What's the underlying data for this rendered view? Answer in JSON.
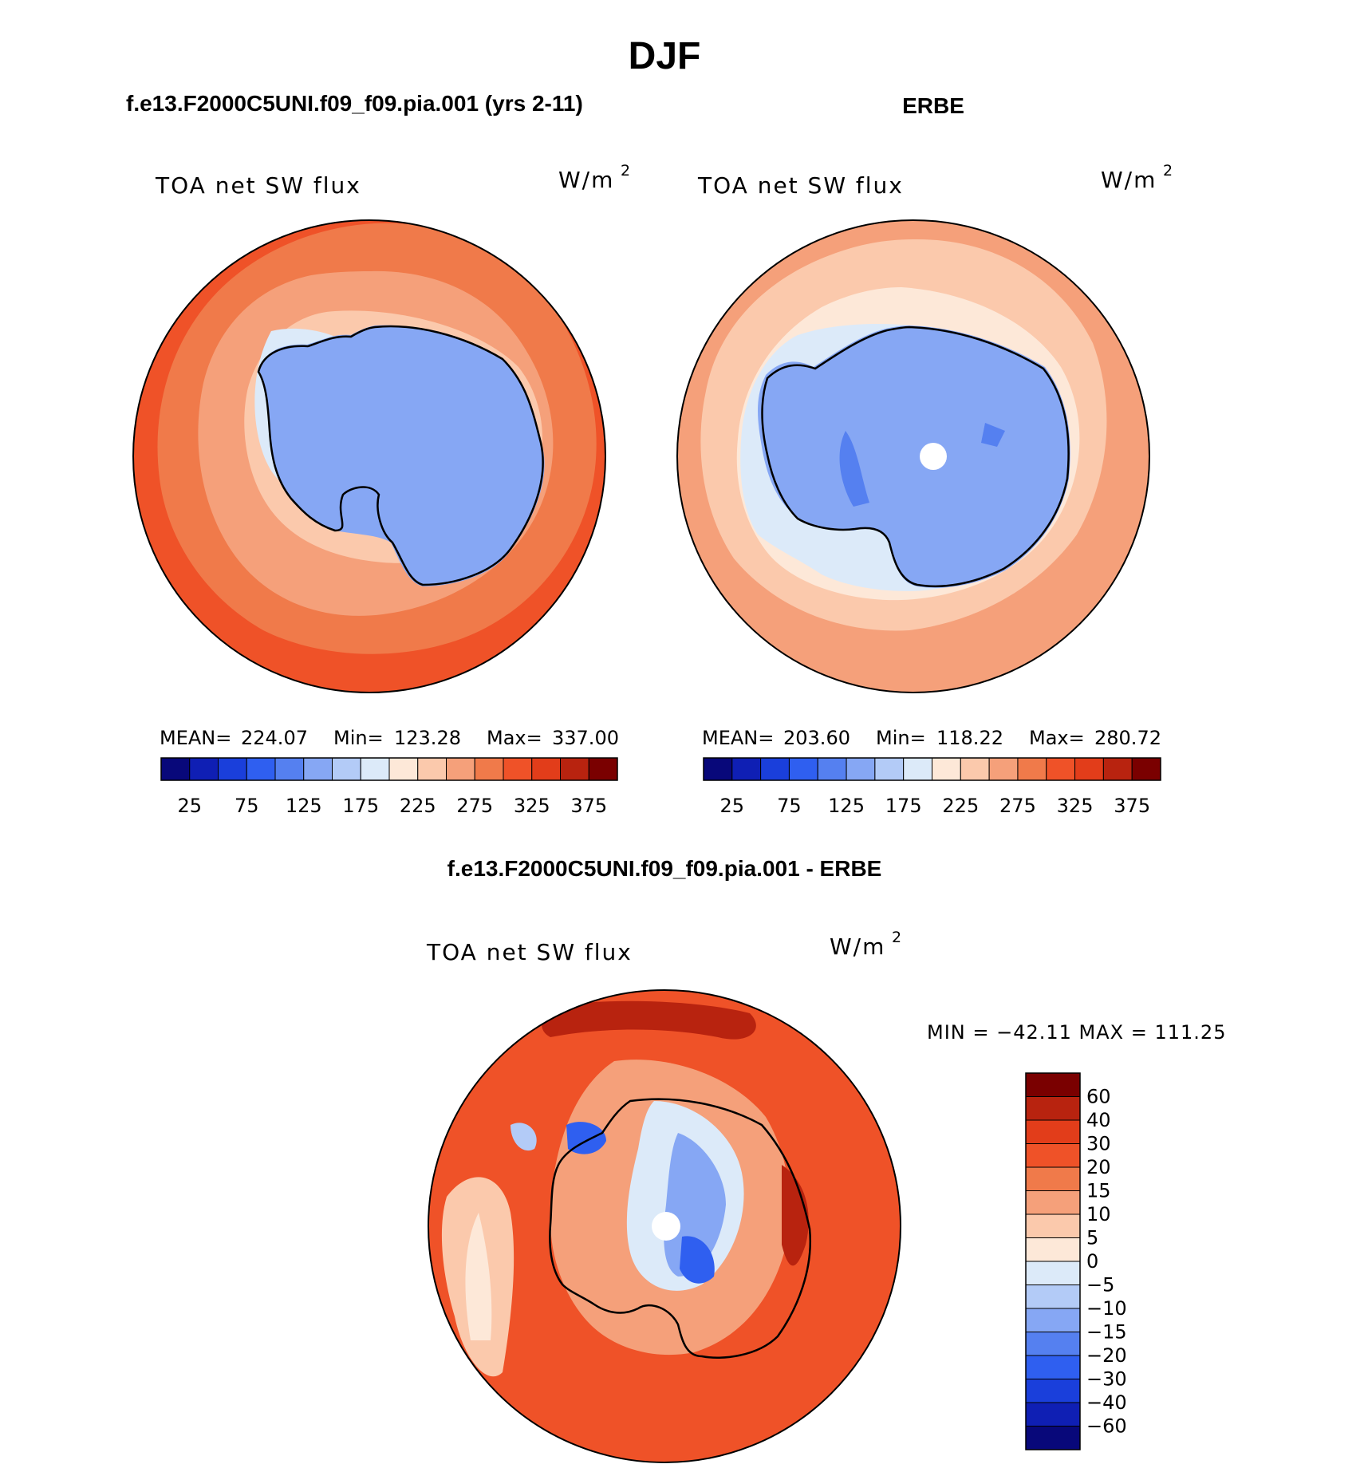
{
  "title": "DJF",
  "chart_data": [
    {
      "type": "contour-map",
      "projection": "south-polar-stereographic",
      "title": "f.e13.F2000C5UNI.f09_f09.pia.001 (yrs 2-11)",
      "variable": "TOA net SW flux",
      "units_base": "W/m",
      "units_exp": "2",
      "stats": {
        "mean_label": "MEAN=",
        "mean": "224.07",
        "min_label": "Min=",
        "min": "123.28",
        "max_label": "Max=",
        "max": "337.00"
      },
      "levels": [
        25,
        50,
        75,
        100,
        125,
        150,
        175,
        200,
        225,
        250,
        275,
        300,
        325,
        350,
        375
      ],
      "tick_labels": [
        "25",
        "75",
        "125",
        "175",
        "225",
        "275",
        "325",
        "375"
      ],
      "colors": [
        "#08087a",
        "#0f1fb4",
        "#1a3fdb",
        "#2f5ff0",
        "#5580f0",
        "#86a7f4",
        "#b3cbf7",
        "#dceaf9",
        "#fde8d8",
        "#fbc9ac",
        "#f5a07a",
        "#f07a4a",
        "#ef5228",
        "#e23d1a",
        "#b8230f",
        "#7a0000"
      ]
    },
    {
      "type": "contour-map",
      "projection": "south-polar-stereographic",
      "title": "ERBE",
      "variable": "TOA net SW flux",
      "units_base": "W/m",
      "units_exp": "2",
      "stats": {
        "mean_label": "MEAN=",
        "mean": "203.60",
        "min_label": "Min=",
        "min": "118.22",
        "max_label": "Max=",
        "max": "280.72"
      },
      "levels": [
        25,
        50,
        75,
        100,
        125,
        150,
        175,
        200,
        225,
        250,
        275,
        300,
        325,
        350,
        375
      ],
      "tick_labels": [
        "25",
        "75",
        "125",
        "175",
        "225",
        "275",
        "325",
        "375"
      ],
      "colors": [
        "#08087a",
        "#0f1fb4",
        "#1a3fdb",
        "#2f5ff0",
        "#5580f0",
        "#86a7f4",
        "#b3cbf7",
        "#dceaf9",
        "#fde8d8",
        "#fbc9ac",
        "#f5a07a",
        "#f07a4a",
        "#ef5228",
        "#e23d1a",
        "#b8230f",
        "#7a0000"
      ]
    },
    {
      "type": "contour-map",
      "projection": "south-polar-stereographic",
      "title": "f.e13.F2000C5UNI.f09_f09.pia.001 - ERBE",
      "variable": "TOA net SW flux",
      "units_base": "W/m",
      "units_exp": "2",
      "stats": {
        "text": "MIN = −42.11  MAX = 111.25",
        "min": -42.11,
        "max": 111.25
      },
      "levels": [
        -60,
        -40,
        -30,
        -20,
        -15,
        -10,
        -5,
        0,
        5,
        10,
        15,
        20,
        30,
        40,
        60
      ],
      "tick_labels_top_to_bottom": [
        "60",
        "40",
        "30",
        "20",
        "15",
        "10",
        "5",
        "0",
        "−5",
        "−10",
        "−15",
        "−20",
        "−30",
        "−40",
        "−60"
      ],
      "colors_top_to_bottom": [
        "#7a0000",
        "#b8230f",
        "#e23d1a",
        "#ef5228",
        "#f07a4a",
        "#f5a07a",
        "#fbc9ac",
        "#fde8d8",
        "#dceaf9",
        "#b3cbf7",
        "#86a7f4",
        "#5580f0",
        "#2f5ff0",
        "#1a3fdb",
        "#0f1fb4",
        "#08087a"
      ]
    }
  ]
}
